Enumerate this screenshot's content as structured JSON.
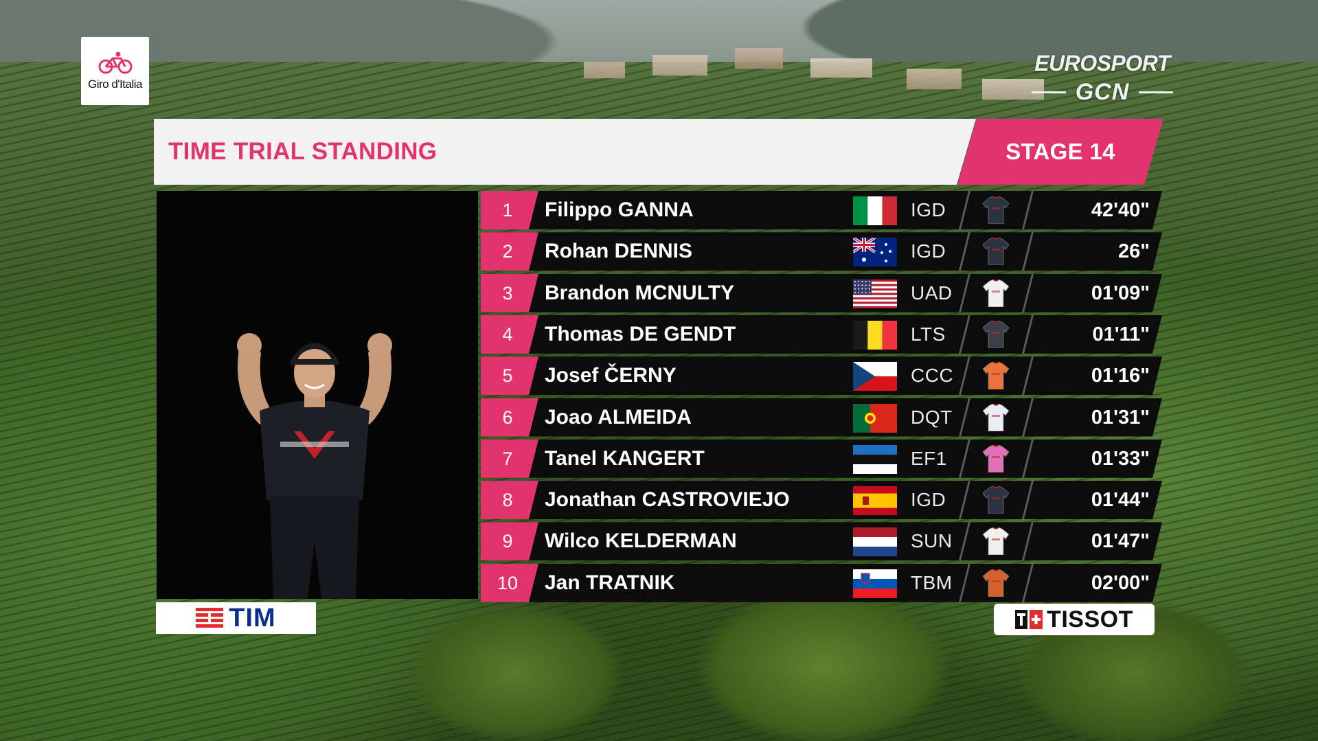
{
  "logos": {
    "giro": "Giro d'Italia",
    "broadcaster_main": "EUROSPORT",
    "broadcaster_sub": "GCN"
  },
  "header": {
    "title": "TIME TRIAL STANDING",
    "stage": "STAGE 14"
  },
  "standings": [
    {
      "rank": "1",
      "name": "Filippo GANNA",
      "country": "italy",
      "team": "IGD",
      "jersey_color": "#2b3340",
      "time": "42'40\""
    },
    {
      "rank": "2",
      "name": "Rohan DENNIS",
      "country": "australia",
      "team": "IGD",
      "jersey_color": "#2b3340",
      "time": "26\""
    },
    {
      "rank": "3",
      "name": "Brandon MCNULTY",
      "country": "united-states",
      "team": "UAD",
      "jersey_color": "#f0f0f0",
      "time": "01'09\""
    },
    {
      "rank": "4",
      "name": "Thomas DE GENDT",
      "country": "belgium",
      "team": "LTS",
      "jersey_color": "#3a3f4a",
      "time": "01'11\""
    },
    {
      "rank": "5",
      "name": "Josef ČERNY",
      "country": "czech-republic",
      "team": "CCC",
      "jersey_color": "#e8743b",
      "time": "01'16\""
    },
    {
      "rank": "6",
      "name": "Joao ALMEIDA",
      "country": "portugal",
      "team": "DQT",
      "jersey_color": "#e9eef6",
      "time": "01'31\""
    },
    {
      "rank": "7",
      "name": "Tanel KANGERT",
      "country": "estonia",
      "team": "EF1",
      "jersey_color": "#e070b8",
      "time": "01'33\""
    },
    {
      "rank": "8",
      "name": "Jonathan CASTROVIEJO",
      "country": "spain",
      "team": "IGD",
      "jersey_color": "#2b3340",
      "time": "01'44\""
    },
    {
      "rank": "9",
      "name": "Wilco KELDERMAN",
      "country": "netherlands",
      "team": "SUN",
      "jersey_color": "#f0f0f0",
      "time": "01'47\""
    },
    {
      "rank": "10",
      "name": "Jan TRATNIK",
      "country": "slovenia",
      "team": "TBM",
      "jersey_color": "#d4622c",
      "time": "02'00\""
    }
  ],
  "sponsors": {
    "left": "TIM",
    "right": "TISSOT"
  },
  "colors": {
    "accent_pink": "#e2336f",
    "row_background": "#0c0c0c",
    "header_background": "#f2f2f2"
  }
}
